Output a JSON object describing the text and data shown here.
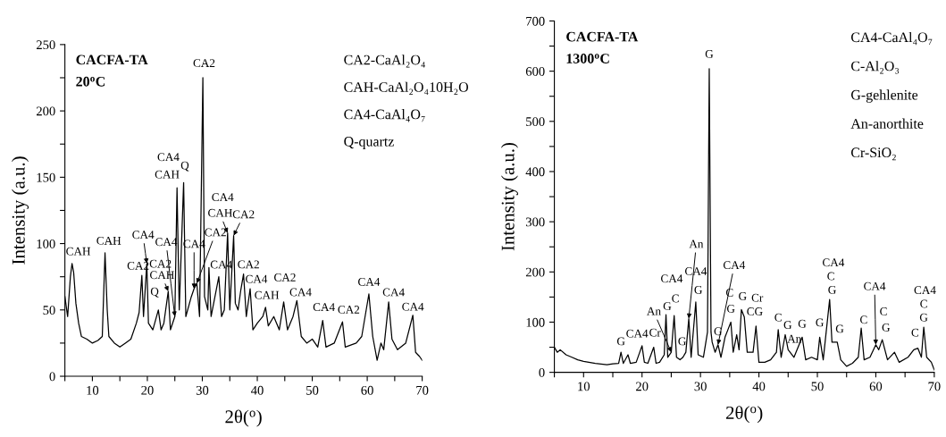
{
  "chart_data": [
    {
      "type": "line",
      "title": "CACFA-TA\n20$^{o}$C",
      "xlabel": "2θ($^{o}$)",
      "ylabel": "Intensity (a.u.)",
      "x": [
        5,
        5.5,
        6,
        6.3,
        6.6,
        7,
        7.5,
        8,
        9,
        10,
        11,
        11.8,
        12.3,
        12.7,
        13,
        14,
        15,
        16,
        17,
        18,
        18.5,
        19,
        19.3,
        19.9,
        20.2,
        21,
        22,
        22.5,
        23,
        23.8,
        24.2,
        25,
        25.4,
        25.8,
        26.6,
        27,
        28,
        28.5,
        29,
        29.5,
        30.1,
        30.4,
        31,
        31.2,
        31.6,
        32.3,
        33,
        33.5,
        34,
        34.6,
        35,
        35.7,
        36,
        36.5,
        37,
        37.5,
        38,
        38.7,
        39.2,
        40,
        41,
        41.5,
        42,
        43,
        44,
        44.8,
        45.5,
        46.5,
        47.2,
        48,
        49,
        50,
        51,
        51.9,
        52.5,
        54,
        55.5,
        56,
        58,
        59,
        60.3,
        61,
        61.8,
        62.5,
        63,
        63.9,
        64.5,
        65.5,
        67,
        68.3,
        68.8,
        69.5,
        70
      ],
      "series": [
        {
          "color": "#000000",
          "values": [
            60,
            45,
            75,
            85,
            78,
            55,
            40,
            30,
            28,
            25,
            27,
            30,
            93,
            50,
            30,
            25,
            22,
            25,
            28,
            40,
            48,
            76,
            45,
            85,
            40,
            35,
            50,
            35,
            40,
            64,
            35,
            45,
            142,
            50,
            146,
            45,
            60,
            66,
            70,
            45,
            225,
            60,
            50,
            82,
            45,
            60,
            75,
            45,
            50,
            108,
            50,
            106,
            55,
            50,
            65,
            77,
            45,
            66,
            35,
            40,
            45,
            52,
            38,
            45,
            35,
            56,
            35,
            45,
            57,
            30,
            25,
            28,
            22,
            42,
            22,
            25,
            41,
            22,
            25,
            30,
            62,
            30,
            12,
            25,
            20,
            56,
            28,
            20,
            25,
            46,
            18,
            15,
            12
          ]
        }
      ],
      "xlim": [
        5,
        70
      ],
      "ylim": [
        0,
        250
      ],
      "xticks": [
        {
          "value": 5,
          "label": null
        },
        10,
        {
          "value": 15,
          "label": null
        },
        20,
        {
          "value": 25,
          "label": null
        },
        30,
        {
          "value": 35,
          "label": null
        },
        40,
        {
          "value": 45,
          "label": null
        },
        50,
        {
          "value": 55,
          "label": null
        },
        60,
        {
          "value": 65,
          "label": null
        },
        70
      ],
      "yticks": [
        0,
        {
          "value": 25,
          "label": null
        },
        50,
        {
          "value": 75,
          "label": null
        },
        100,
        {
          "value": 125,
          "label": null
        },
        150,
        {
          "value": 175,
          "label": null
        },
        200,
        {
          "value": 225,
          "label": null
        },
        250
      ],
      "grid": false,
      "legend": false,
      "annotations": [
        "CA2-CaAl₂O₄",
        "CAH-CaAl₂O₄10H₂O",
        "CA4-CaAl₄O₇",
        "Q-quartz",
        {
          "text": "CAH",
          "x": 6.3,
          "y": 85
        },
        {
          "text": "CAH",
          "x": 12.3,
          "y": 93
        },
        {
          "text": "CA4",
          "x": 19.9,
          "y": 85
        },
        {
          "text": "CA2",
          "x": 19,
          "y": 76
        },
        {
          "text": "CA2",
          "x": 19.9,
          "y": 85
        },
        {
          "text": "CAH",
          "x": 23.8,
          "y": 64
        },
        {
          "text": "Q",
          "x": 22,
          "y": 50
        },
        {
          "text": "CA4",
          "x": 25,
          "y": 45
        },
        {
          "text": "CA4",
          "x": 28.5,
          "y": 66
        },
        {
          "text": "CA2",
          "x": 29,
          "y": 70
        },
        {
          "text": "CA4",
          "x": 33,
          "y": 75
        },
        {
          "text": "CAH",
          "x": 34.6,
          "y": 108
        },
        {
          "text": "CA2",
          "x": 35.7,
          "y": 106
        },
        {
          "text": "CA4",
          "x": 34.6,
          "y": 108
        },
        {
          "text": "CA2",
          "x": 37.5,
          "y": 77
        },
        {
          "text": "CA4",
          "x": 38.7,
          "y": 66
        },
        {
          "text": "CAH",
          "x": 41.5,
          "y": 52
        },
        {
          "text": "CA2",
          "x": 44.8,
          "y": 56
        },
        {
          "text": "CA4",
          "x": 47.2,
          "y": 57
        },
        {
          "text": "CA4",
          "x": 51.9,
          "y": 42
        },
        {
          "text": "CA2",
          "x": 55.5,
          "y": 41
        },
        {
          "text": "CA4",
          "x": 60.3,
          "y": 62
        },
        {
          "text": "CA4",
          "x": 63.9,
          "y": 56
        },
        {
          "text": "CA4",
          "x": 68.3,
          "y": 46
        },
        {
          "text": "CA4",
          "x": 25.4,
          "y": 142
        },
        {
          "text": "CAH",
          "x": 25.4,
          "y": 142
        },
        {
          "text": "Q",
          "x": 26.6,
          "y": 146
        },
        {
          "text": "CA2",
          "x": 30.1,
          "y": 225
        }
      ]
    },
    {
      "type": "line",
      "title": "CACFA-TA\n1300$^{o}$C",
      "xlabel": "2θ($^{o}$)",
      "ylabel": "Intensity (a.u.)",
      "x": [
        5,
        5.5,
        6,
        7,
        8,
        9,
        10,
        12,
        14,
        15,
        16,
        16.4,
        16.8,
        17.6,
        18,
        19,
        20,
        20.4,
        21,
        22,
        22.4,
        23,
        23.8,
        24.1,
        24.4,
        25,
        25.5,
        25.9,
        26.5,
        27,
        27.5,
        28,
        28.4,
        29.2,
        29.6,
        30.5,
        31.2,
        31.5,
        31.8,
        32,
        32.5,
        33,
        33.5,
        34.2,
        34.7,
        35.2,
        35.6,
        36.2,
        36.6,
        37,
        37.5,
        38,
        39,
        39.5,
        40,
        41,
        42,
        43,
        43.3,
        43.8,
        44.5,
        45,
        46,
        47.4,
        48,
        49,
        50,
        50.4,
        51,
        52.1,
        52.5,
        53.4,
        54,
        55,
        56,
        57,
        57.5,
        58,
        59,
        60,
        60.5,
        61.1,
        62,
        63.2,
        64,
        65.5,
        66.5,
        67.2,
        67.8,
        68.2,
        68.7,
        69.5,
        70
      ],
      "series": [
        {
          "color": "#000000",
          "values": [
            50,
            40,
            45,
            35,
            30,
            25,
            22,
            18,
            15,
            17,
            18,
            40,
            18,
            35,
            18,
            20,
            53,
            20,
            18,
            50,
            18,
            20,
            35,
            115,
            30,
            40,
            113,
            30,
            25,
            30,
            40,
            107,
            30,
            140,
            35,
            30,
            80,
            605,
            80,
            60,
            40,
            55,
            30,
            70,
            85,
            100,
            40,
            75,
            45,
            125,
            110,
            40,
            40,
            92,
            20,
            20,
            25,
            40,
            85,
            30,
            75,
            45,
            30,
            70,
            25,
            30,
            25,
            70,
            25,
            145,
            60,
            60,
            25,
            12,
            18,
            30,
            88,
            25,
            30,
            55,
            45,
            65,
            25,
            40,
            20,
            30,
            45,
            48,
            30,
            90,
            30,
            20,
            5
          ]
        }
      ],
      "xlim": [
        5,
        70
      ],
      "ylim": [
        0,
        700
      ],
      "xticks": [
        {
          "value": 5,
          "label": null
        },
        10,
        {
          "value": 15,
          "label": null
        },
        20,
        {
          "value": 25,
          "label": null
        },
        30,
        {
          "value": 35,
          "label": null
        },
        40,
        {
          "value": 45,
          "label": null
        },
        50,
        {
          "value": 55,
          "label": null
        },
        60,
        {
          "value": 65,
          "label": null
        },
        70
      ],
      "yticks": [
        0,
        {
          "value": 50,
          "label": null
        },
        100,
        {
          "value": 150,
          "label": null
        },
        200,
        {
          "value": 250,
          "label": null
        },
        300,
        {
          "value": 350,
          "label": null
        },
        400,
        {
          "value": 450,
          "label": null
        },
        500,
        {
          "value": 550,
          "label": null
        },
        600,
        {
          "value": 650,
          "label": null
        },
        700
      ],
      "grid": false,
      "legend": false,
      "annotations": [
        "CA4-CaAl₄O₇",
        "C-Al₂O₃",
        "G-gehlenite",
        "An-anorthite",
        "Cr-SiO₂",
        {
          "text": "G",
          "x": 16.4,
          "y": 40
        },
        {
          "text": "CA4",
          "x": 20,
          "y": 53
        },
        {
          "text": "Cr",
          "x": 22,
          "y": 50
        },
        {
          "text": "An",
          "x": 25,
          "y": 40
        },
        {
          "text": "G",
          "x": 24.1,
          "y": 115
        },
        {
          "text": "C",
          "x": 25.5,
          "y": 113
        },
        {
          "text": "CA4",
          "x": 25.5,
          "y": 113
        },
        {
          "text": "G",
          "x": 27.5,
          "y": 40
        },
        {
          "text": "An",
          "x": 28,
          "y": 107
        },
        {
          "text": "CA4",
          "x": 29.2,
          "y": 140
        },
        {
          "text": "G",
          "x": 29.2,
          "y": 140
        },
        {
          "text": "G",
          "x": 31.5,
          "y": 605
        },
        {
          "text": "CA4",
          "x": 33,
          "y": 55
        },
        {
          "text": "G",
          "x": 33,
          "y": 55
        },
        {
          "text": "C",
          "x": 35.2,
          "y": 100
        },
        {
          "text": "G",
          "x": 35.2,
          "y": 100
        },
        {
          "text": "G",
          "x": 37,
          "y": 125
        },
        {
          "text": "Cr",
          "x": 39.5,
          "y": 92
        },
        {
          "text": "CG",
          "x": 39.5,
          "y": 92
        },
        {
          "text": "C",
          "x": 43.3,
          "y": 85
        },
        {
          "text": "G",
          "x": 44.5,
          "y": 75
        },
        {
          "text": "An",
          "x": 45,
          "y": 45
        },
        {
          "text": "G",
          "x": 47.4,
          "y": 70
        },
        {
          "text": "G",
          "x": 50.4,
          "y": 70
        },
        {
          "text": "CA4",
          "x": 52.1,
          "y": 145
        },
        {
          "text": "C",
          "x": 52.1,
          "y": 145
        },
        {
          "text": "G",
          "x": 52.1,
          "y": 145
        },
        {
          "text": "G",
          "x": 53.4,
          "y": 60
        },
        {
          "text": "C",
          "x": 57.5,
          "y": 88
        },
        {
          "text": "CA4",
          "x": 60,
          "y": 55
        },
        {
          "text": "C",
          "x": 61.1,
          "y": 65
        },
        {
          "text": "G",
          "x": 61.1,
          "y": 65
        },
        {
          "text": "C",
          "x": 66.5,
          "y": 45
        },
        {
          "text": "CA4",
          "x": 68.2,
          "y": 90
        },
        {
          "text": "C",
          "x": 68.2,
          "y": 90
        },
        {
          "text": "G",
          "x": 68.2,
          "y": 90
        }
      ]
    }
  ]
}
